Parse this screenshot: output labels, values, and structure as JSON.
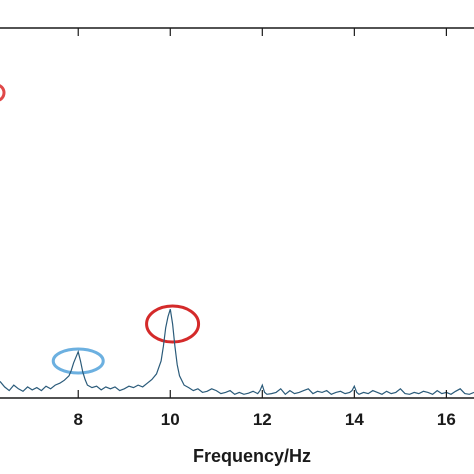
{
  "chart_data": {
    "type": "line",
    "title": "",
    "xlabel": "Frequency/Hz",
    "ylabel": "",
    "xlim": [
      6.3,
      16.6
    ],
    "ylim": [
      0,
      1
    ],
    "x_ticks": [
      8,
      10,
      12,
      14,
      16
    ],
    "x_tick_labels": [
      "8",
      "10",
      "12",
      "14",
      "16"
    ],
    "grid": false,
    "line_color": "#2b5b7a",
    "series": [
      {
        "x": [
          6.3,
          6.4,
          6.5,
          6.6,
          6.7,
          6.8,
          6.9,
          7.0,
          7.1,
          7.2,
          7.3,
          7.4,
          7.5,
          7.6,
          7.7,
          7.8,
          7.85,
          7.9,
          7.95,
          8.0,
          8.05,
          8.1,
          8.15,
          8.2,
          8.3,
          8.4,
          8.5,
          8.6,
          8.7,
          8.8,
          8.9,
          9.0,
          9.1,
          9.2,
          9.3,
          9.4,
          9.5,
          9.6,
          9.7,
          9.8,
          9.85,
          9.9,
          9.95,
          10.0,
          10.05,
          10.1,
          10.15,
          10.2,
          10.3,
          10.4,
          10.5,
          10.6,
          10.7,
          10.8,
          10.9,
          11.0,
          11.1,
          11.2,
          11.3,
          11.4,
          11.5,
          11.6,
          11.7,
          11.8,
          11.9,
          11.95,
          12.0,
          12.05,
          12.1,
          12.2,
          12.3,
          12.4,
          12.5,
          12.6,
          12.7,
          12.8,
          12.9,
          13.0,
          13.1,
          13.2,
          13.3,
          13.4,
          13.5,
          13.6,
          13.7,
          13.8,
          13.9,
          13.95,
          14.0,
          14.05,
          14.1,
          14.2,
          14.3,
          14.4,
          14.5,
          14.6,
          14.7,
          14.8,
          14.9,
          15.0,
          15.1,
          15.2,
          15.3,
          15.4,
          15.5,
          15.6,
          15.7,
          15.8,
          15.9,
          16.0,
          16.1,
          16.2,
          16.3,
          16.4,
          16.5,
          16.6
        ],
        "y": [
          0.045,
          0.03,
          0.02,
          0.035,
          0.025,
          0.018,
          0.03,
          0.022,
          0.028,
          0.02,
          0.032,
          0.025,
          0.035,
          0.04,
          0.048,
          0.06,
          0.075,
          0.095,
          0.11,
          0.125,
          0.1,
          0.07,
          0.05,
          0.035,
          0.028,
          0.032,
          0.022,
          0.03,
          0.025,
          0.03,
          0.02,
          0.025,
          0.032,
          0.028,
          0.035,
          0.03,
          0.04,
          0.05,
          0.065,
          0.1,
          0.14,
          0.19,
          0.22,
          0.24,
          0.2,
          0.14,
          0.09,
          0.06,
          0.035,
          0.028,
          0.02,
          0.025,
          0.015,
          0.018,
          0.025,
          0.02,
          0.012,
          0.015,
          0.02,
          0.01,
          0.015,
          0.01,
          0.013,
          0.018,
          0.012,
          0.02,
          0.035,
          0.015,
          0.01,
          0.012,
          0.015,
          0.025,
          0.01,
          0.02,
          0.012,
          0.015,
          0.02,
          0.025,
          0.012,
          0.018,
          0.015,
          0.02,
          0.01,
          0.015,
          0.018,
          0.012,
          0.015,
          0.02,
          0.032,
          0.015,
          0.01,
          0.015,
          0.012,
          0.02,
          0.015,
          0.01,
          0.018,
          0.012,
          0.015,
          0.025,
          0.012,
          0.01,
          0.015,
          0.012,
          0.018,
          0.015,
          0.01,
          0.02,
          0.012,
          0.015,
          0.01,
          0.018,
          0.025,
          0.012,
          0.01,
          0.015
        ]
      }
    ],
    "annotations": [
      {
        "shape": "ellipse",
        "color": "#6cb0e0",
        "x": 8.0,
        "y": 0.1
      },
      {
        "shape": "ellipse",
        "color": "#d42a2a",
        "x": 10.05,
        "y": 0.2
      },
      {
        "shape": "partial-circle",
        "color": "#e04848",
        "x": 6.3,
        "y": 0.825
      }
    ]
  }
}
